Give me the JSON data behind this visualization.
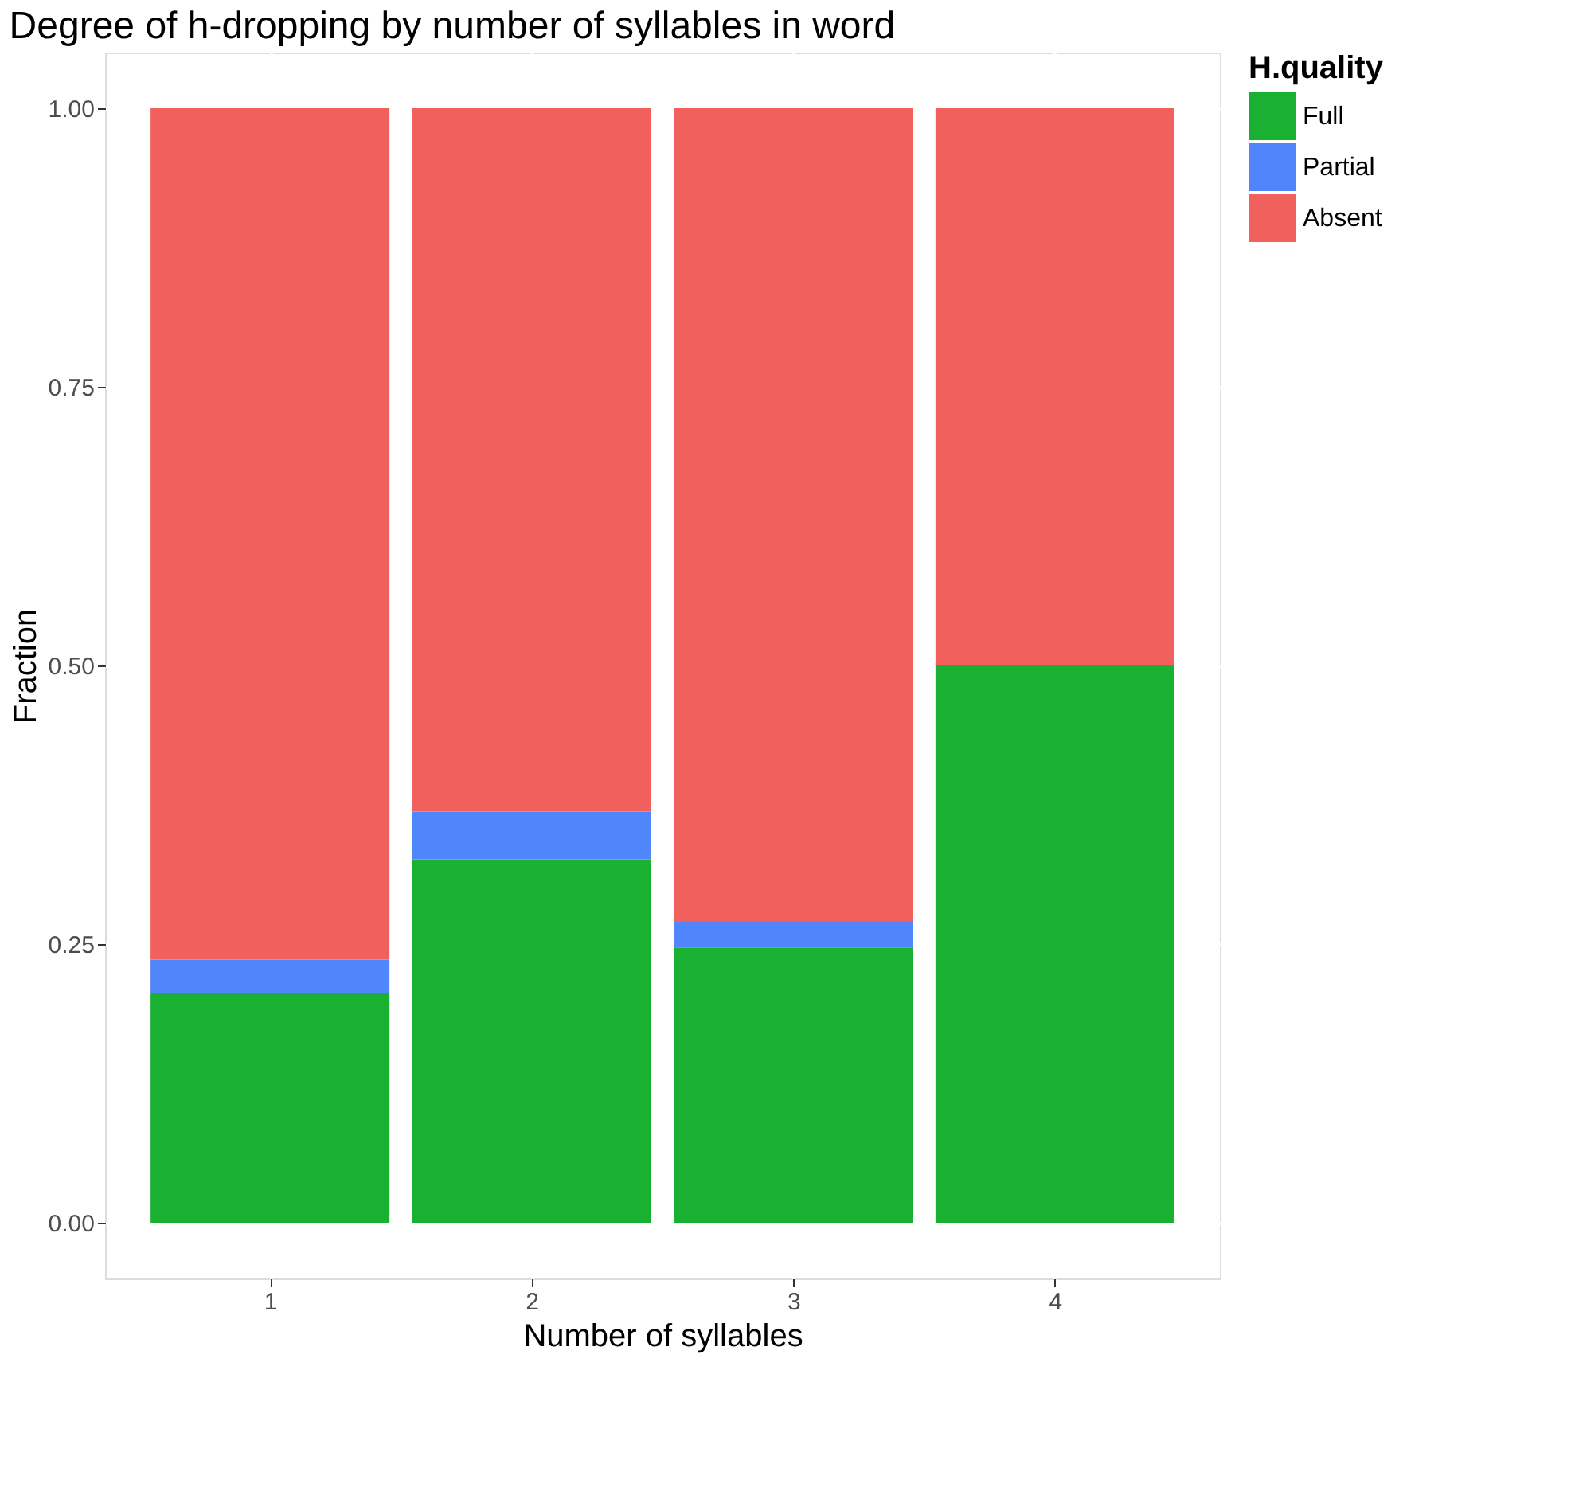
{
  "chart_data": {
    "type": "bar",
    "title": "Degree of h-dropping by number of syllables in word",
    "xlabel": "Number of syllables",
    "ylabel": "Fraction",
    "legend_title": "H.quality",
    "categories": [
      "1",
      "2",
      "3",
      "4"
    ],
    "stacked": true,
    "series": [
      {
        "name": "Full",
        "color": "#1ab031",
        "values": [
          0.206,
          0.326,
          0.247,
          0.5
        ]
      },
      {
        "name": "Partial",
        "color": "#5185fb",
        "values": [
          0.03,
          0.043,
          0.023,
          0
        ]
      },
      {
        "name": "Absent",
        "color": "#f1605c",
        "values": [
          0.764,
          0.631,
          0.73,
          0.5
        ]
      }
    ],
    "ylim": [
      -0.05,
      1.05
    ],
    "yticks": [
      {
        "value": 0,
        "label": "0.00"
      },
      {
        "value": 0.25,
        "label": "0.25"
      },
      {
        "value": 0.5,
        "label": "0.50"
      },
      {
        "value": 0.75,
        "label": "0.75"
      },
      {
        "value": 1,
        "label": "1.00"
      }
    ],
    "grid": true,
    "legend": "right"
  }
}
